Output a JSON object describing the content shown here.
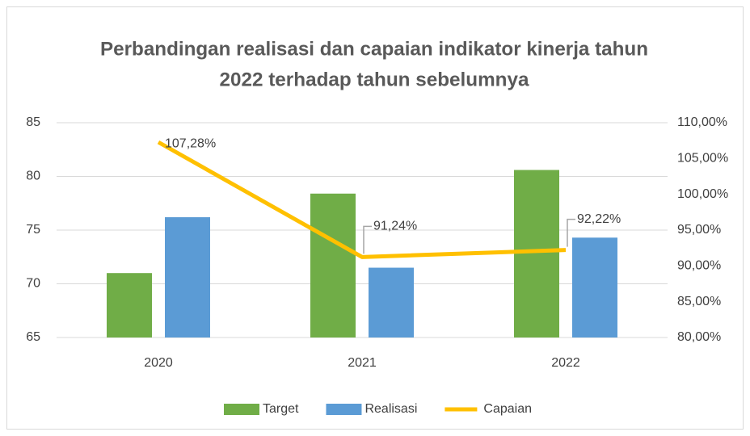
{
  "chart_data": {
    "type": "bar-line",
    "title": [
      "Perbandingan realisasi dan capaian indikator kinerja tahun",
      "2022 terhadap tahun sebelumnya"
    ],
    "categories": [
      "2020",
      "2021",
      "2022"
    ],
    "series": [
      {
        "name": "Target",
        "color": "#70ad47",
        "type": "bar",
        "values": [
          71,
          78.4,
          80.6
        ]
      },
      {
        "name": "Realisasi",
        "color": "#5b9bd5",
        "type": "bar",
        "values": [
          76.2,
          71.5,
          74.3
        ]
      },
      {
        "name": "Capaian",
        "color": "#ffc000",
        "type": "line",
        "axis": "y2",
        "values": [
          107.28,
          91.24,
          92.22
        ],
        "value_labels": [
          "107,28%",
          "91,24%",
          "92,22%"
        ]
      }
    ],
    "ylim": [
      65,
      85
    ],
    "yticks": [
      65,
      70,
      75,
      80,
      85
    ],
    "y2lim": [
      80,
      110
    ],
    "y2ticks": [
      {
        "value": 80,
        "label": "80,00%"
      },
      {
        "value": 85,
        "label": "85,00%"
      },
      {
        "value": 90,
        "label": "90,00%"
      },
      {
        "value": 95,
        "label": "95,00%"
      },
      {
        "value": 100,
        "label": "100,00%"
      },
      {
        "value": 105,
        "label": "105,00%"
      },
      {
        "value": 110,
        "label": "110,00%"
      }
    ],
    "grid": true,
    "legend": "bottom"
  }
}
